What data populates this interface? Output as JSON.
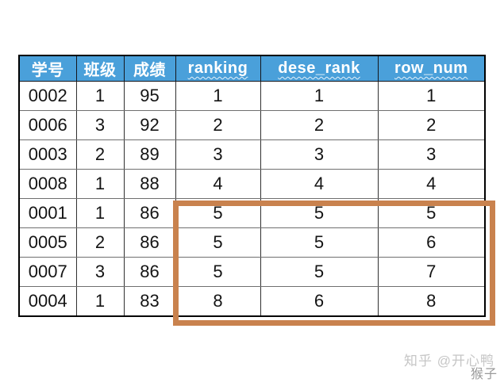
{
  "chart_data": {
    "type": "table",
    "columns": [
      "学号",
      "班级",
      "成绩",
      "ranking",
      "dese_rank",
      "row_num"
    ],
    "rows": [
      [
        "0002",
        "1",
        "95",
        "1",
        "1",
        "1"
      ],
      [
        "0006",
        "3",
        "92",
        "2",
        "2",
        "2"
      ],
      [
        "0003",
        "2",
        "89",
        "3",
        "3",
        "3"
      ],
      [
        "0008",
        "1",
        "88",
        "4",
        "4",
        "4"
      ],
      [
        "0001",
        "1",
        "86",
        "5",
        "5",
        "5"
      ],
      [
        "0005",
        "2",
        "86",
        "5",
        "5",
        "6"
      ],
      [
        "0007",
        "3",
        "86",
        "5",
        "5",
        "7"
      ],
      [
        "0004",
        "1",
        "83",
        "8",
        "6",
        "8"
      ]
    ],
    "title": "",
    "layout_hints": {
      "header_style": "blue background, white bold text, english headers have wavy spellcheck underline",
      "gridlines": true
    }
  },
  "highlight": {
    "covers_columns": [
      "ranking",
      "dese_rank",
      "row_num"
    ],
    "covers_row_indices": [
      4,
      5,
      6,
      7
    ],
    "border_color": "#c9824e"
  },
  "colors": {
    "header_bg": "#4aa0da",
    "header_text": "#ffffff",
    "highlight_border": "#c9824e",
    "watermark_light": "#c6c6c6",
    "watermark_dark": "#9a9a9a"
  },
  "watermark": {
    "line1": "知乎 @开心鸭",
    "line2": "猴子"
  }
}
